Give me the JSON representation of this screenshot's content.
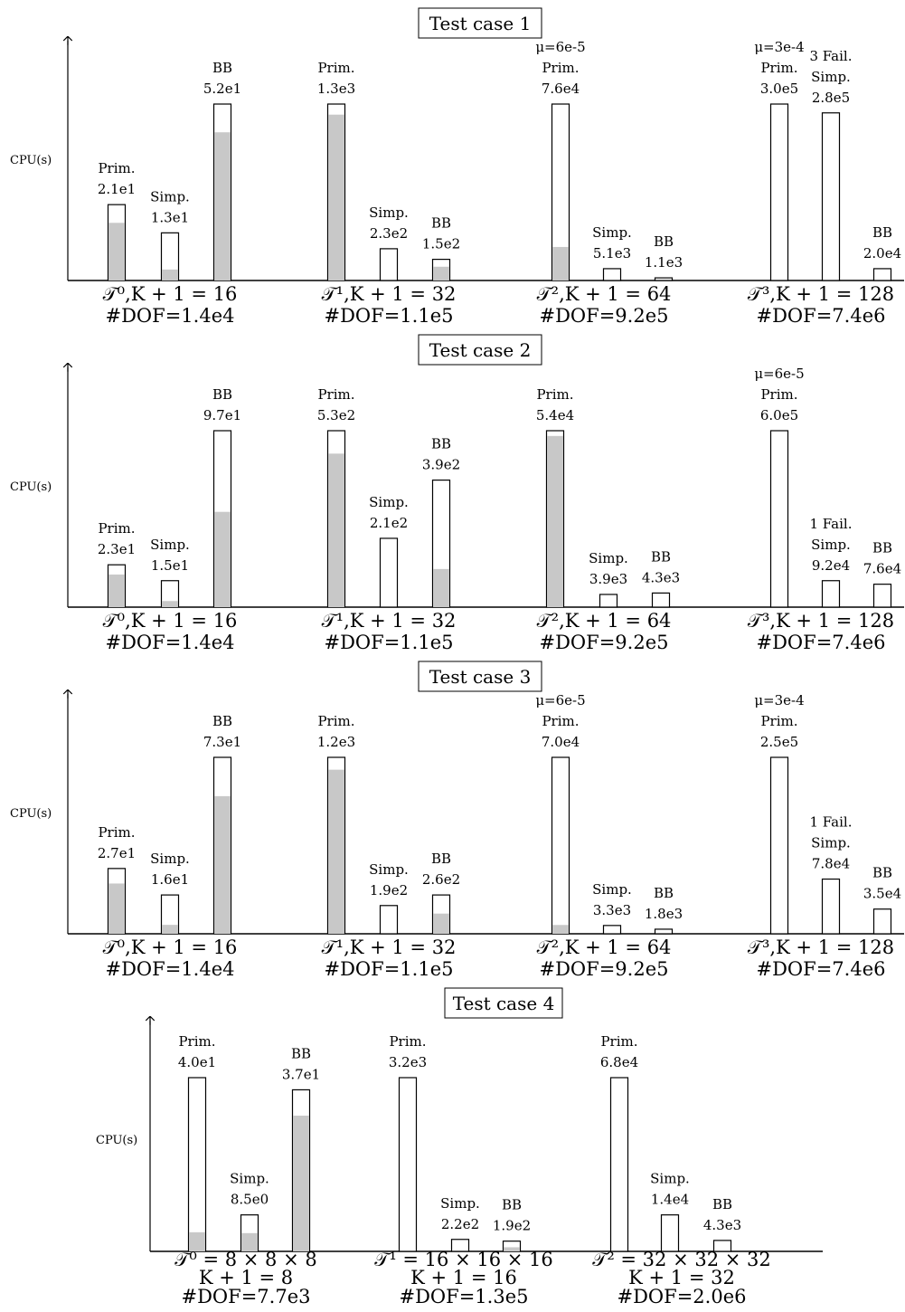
{
  "ylabel": "CPU(s)",
  "colors": {
    "filled": "#c8c8c8",
    "outline": "#000000",
    "background": "#ffffff"
  },
  "chart_data": [
    {
      "type": "bar",
      "title": "Test case 1",
      "ylabel": "CPU(s)",
      "groups": [
        {
          "line1": "𝒯⁰,K + 1 = 16",
          "line2": "#DOF=1.4e4",
          "bars": [
            {
              "method": "Prim.",
              "value_label": "2.1e1",
              "value": 21,
              "height": 0.43,
              "fill_fraction": 0.76
            },
            {
              "method": "Simp.",
              "value_label": "1.3e1",
              "value": 13,
              "height": 0.27,
              "fill_fraction": 0.23
            },
            {
              "method": "BB",
              "value_label": "5.2e1",
              "value": 52,
              "height": 1.0,
              "fill_fraction": 0.84
            }
          ]
        },
        {
          "line1": "𝒯¹,K + 1 = 32",
          "line2": "#DOF=1.1e5",
          "bars": [
            {
              "method": "Prim.",
              "value_label": "1.3e3",
              "value": 1300,
              "height": 1.0,
              "fill_fraction": 0.94
            },
            {
              "method": "Simp.",
              "value_label": "2.3e2",
              "value": 230,
              "height": 0.18,
              "fill_fraction": 0.0
            },
            {
              "method": "BB",
              "value_label": "1.5e2",
              "value": 150,
              "height": 0.12,
              "fill_fraction": 0.65
            }
          ]
        },
        {
          "line1": "𝒯²,K + 1 = 64",
          "line2": "#DOF=9.2e5",
          "bars": [
            {
              "method": "Prim.",
              "value_label": "7.6e4",
              "value": 76000,
              "height": 1.0,
              "fill_fraction": 0.19,
              "note": "μ=6e-5"
            },
            {
              "method": "Simp.",
              "value_label": "5.1e3",
              "value": 5100,
              "height": 0.067,
              "fill_fraction": 0.0
            },
            {
              "method": "BB",
              "value_label": "1.1e3",
              "value": 1100,
              "height": 0.015,
              "fill_fraction": 0.0
            }
          ]
        },
        {
          "line1": "𝒯³,K + 1 = 128",
          "line2": "#DOF=7.4e6",
          "bars": [
            {
              "method": "Prim.",
              "value_label": "3.0e5",
              "value": 300000,
              "height": 1.0,
              "fill_fraction": 0.0,
              "note": "μ=3e-4"
            },
            {
              "method": "Simp.",
              "value_label": "2.8e5",
              "value": 280000,
              "height": 0.95,
              "fill_fraction": 0.0,
              "note": "3 Fail."
            },
            {
              "method": "BB",
              "value_label": "2.0e4",
              "value": 20000,
              "height": 0.067,
              "fill_fraction": 0.0
            }
          ]
        }
      ]
    },
    {
      "type": "bar",
      "title": "Test case 2",
      "ylabel": "CPU(s)",
      "groups": [
        {
          "line1": "𝒯⁰,K + 1 = 16",
          "line2": "#DOF=1.4e4",
          "bars": [
            {
              "method": "Prim.",
              "value_label": "2.3e1",
              "value": 23,
              "height": 0.24,
              "fill_fraction": 0.77
            },
            {
              "method": "Simp.",
              "value_label": "1.5e1",
              "value": 15,
              "height": 0.15,
              "fill_fraction": 0.23
            },
            {
              "method": "BB",
              "value_label": "9.7e1",
              "value": 97,
              "height": 1.0,
              "fill_fraction": 0.54
            }
          ]
        },
        {
          "line1": "𝒯¹,K + 1 = 32",
          "line2": "#DOF=1.1e5",
          "bars": [
            {
              "method": "Prim.",
              "value_label": "5.3e2",
              "value": 530,
              "height": 1.0,
              "fill_fraction": 0.87
            },
            {
              "method": "Simp.",
              "value_label": "2.1e2",
              "value": 210,
              "height": 0.39,
              "fill_fraction": 0.0
            },
            {
              "method": "BB",
              "value_label": "3.9e2",
              "value": 390,
              "height": 0.72,
              "fill_fraction": 0.3
            }
          ]
        },
        {
          "line1": "𝒯²,K + 1 = 64",
          "line2": "#DOF=9.2e5",
          "bars": [
            {
              "method": "Prim.",
              "value_label": "5.4e4",
              "value": 54000,
              "height": 1.0,
              "fill_fraction": 0.97
            },
            {
              "method": "Simp.",
              "value_label": "3.9e3",
              "value": 3900,
              "height": 0.072,
              "fill_fraction": 0.0
            },
            {
              "method": "BB",
              "value_label": "4.3e3",
              "value": 4300,
              "height": 0.08,
              "fill_fraction": 0.0
            }
          ]
        },
        {
          "line1": "𝒯³,K + 1 = 128",
          "line2": "#DOF=7.4e6",
          "bars": [
            {
              "method": "Prim.",
              "value_label": "6.0e5",
              "value": 600000,
              "height": 1.0,
              "fill_fraction": 0.0,
              "note": "μ=6e-5"
            },
            {
              "method": "Simp.",
              "value_label": "9.2e4",
              "value": 92000,
              "height": 0.15,
              "fill_fraction": 0.0,
              "note": "1 Fail."
            },
            {
              "method": "BB",
              "value_label": "7.6e4",
              "value": 76000,
              "height": 0.13,
              "fill_fraction": 0.0
            }
          ]
        }
      ]
    },
    {
      "type": "bar",
      "title": "Test case 3",
      "ylabel": "CPU(s)",
      "groups": [
        {
          "line1": "𝒯⁰,K + 1 = 16",
          "line2": "#DOF=1.4e4",
          "bars": [
            {
              "method": "Prim.",
              "value_label": "2.7e1",
              "value": 27,
              "height": 0.37,
              "fill_fraction": 0.77
            },
            {
              "method": "Simp.",
              "value_label": "1.6e1",
              "value": 16,
              "height": 0.22,
              "fill_fraction": 0.23
            },
            {
              "method": "BB",
              "value_label": "7.3e1",
              "value": 73,
              "height": 1.0,
              "fill_fraction": 0.78
            }
          ]
        },
        {
          "line1": "𝒯¹,K + 1 = 32",
          "line2": "#DOF=1.1e5",
          "bars": [
            {
              "method": "Prim.",
              "value_label": "1.2e3",
              "value": 1200,
              "height": 1.0,
              "fill_fraction": 0.93
            },
            {
              "method": "Simp.",
              "value_label": "1.9e2",
              "value": 190,
              "height": 0.16,
              "fill_fraction": 0.0
            },
            {
              "method": "BB",
              "value_label": "2.6e2",
              "value": 260,
              "height": 0.22,
              "fill_fraction": 0.52
            }
          ]
        },
        {
          "line1": "𝒯²,K + 1 = 64",
          "line2": "#DOF=9.2e5",
          "bars": [
            {
              "method": "Prim.",
              "value_label": "7.0e4",
              "value": 70000,
              "height": 1.0,
              "fill_fraction": 0.05,
              "note": "μ=6e-5"
            },
            {
              "method": "Simp.",
              "value_label": "3.3e3",
              "value": 3300,
              "height": 0.047,
              "fill_fraction": 0.0
            },
            {
              "method": "BB",
              "value_label": "1.8e3",
              "value": 1800,
              "height": 0.026,
              "fill_fraction": 0.0
            }
          ]
        },
        {
          "line1": "𝒯³,K + 1 = 128",
          "line2": "#DOF=7.4e6",
          "bars": [
            {
              "method": "Prim.",
              "value_label": "2.5e5",
              "value": 250000,
              "height": 1.0,
              "fill_fraction": 0.0,
              "note": "μ=3e-4"
            },
            {
              "method": "Simp.",
              "value_label": "7.8e4",
              "value": 78000,
              "height": 0.31,
              "fill_fraction": 0.0,
              "note": "1 Fail."
            },
            {
              "method": "BB",
              "value_label": "3.5e4",
              "value": 35000,
              "height": 0.14,
              "fill_fraction": 0.0
            }
          ]
        }
      ]
    },
    {
      "type": "bar",
      "title": "Test case 4",
      "ylabel": "CPU(s)",
      "groups": [
        {
          "line1": "𝒯⁰ = 8 × 8 × 8",
          "line2": "K + 1 = 8",
          "line3": "#DOF=7.7e3",
          "bars": [
            {
              "method": "Prim.",
              "value_label": "4.0e1",
              "value": 40,
              "height": 1.0,
              "fill_fraction": 0.11
            },
            {
              "method": "Simp.",
              "value_label": "8.5e0",
              "value": 8.5,
              "height": 0.21,
              "fill_fraction": 0.5
            },
            {
              "method": "BB",
              "value_label": "3.7e1",
              "value": 37,
              "height": 0.93,
              "fill_fraction": 0.84
            }
          ]
        },
        {
          "line1": "𝒯¹ = 16 × 16 × 16",
          "line2": "K + 1 = 16",
          "line3": "#DOF=1.3e5",
          "bars": [
            {
              "method": "Prim.",
              "value_label": "3.2e3",
              "value": 3200,
              "height": 1.0,
              "fill_fraction": 0.0
            },
            {
              "method": "Simp.",
              "value_label": "2.2e2",
              "value": 220,
              "height": 0.069,
              "fill_fraction": 0.0
            },
            {
              "method": "BB",
              "value_label": "1.9e2",
              "value": 190,
              "height": 0.059,
              "fill_fraction": 0.4
            }
          ]
        },
        {
          "line1": "𝒯² = 32 × 32 × 32",
          "line2": "K + 1 = 32",
          "line3": "#DOF=2.0e6",
          "bars": [
            {
              "method": "Prim.",
              "value_label": "6.8e4",
              "value": 68000,
              "height": 1.0,
              "fill_fraction": 0.0
            },
            {
              "method": "Simp.",
              "value_label": "1.4e4",
              "value": 14000,
              "height": 0.21,
              "fill_fraction": 0.0
            },
            {
              "method": "BB",
              "value_label": "4.3e3",
              "value": 4300,
              "height": 0.063,
              "fill_fraction": 0.0
            }
          ]
        }
      ]
    }
  ]
}
